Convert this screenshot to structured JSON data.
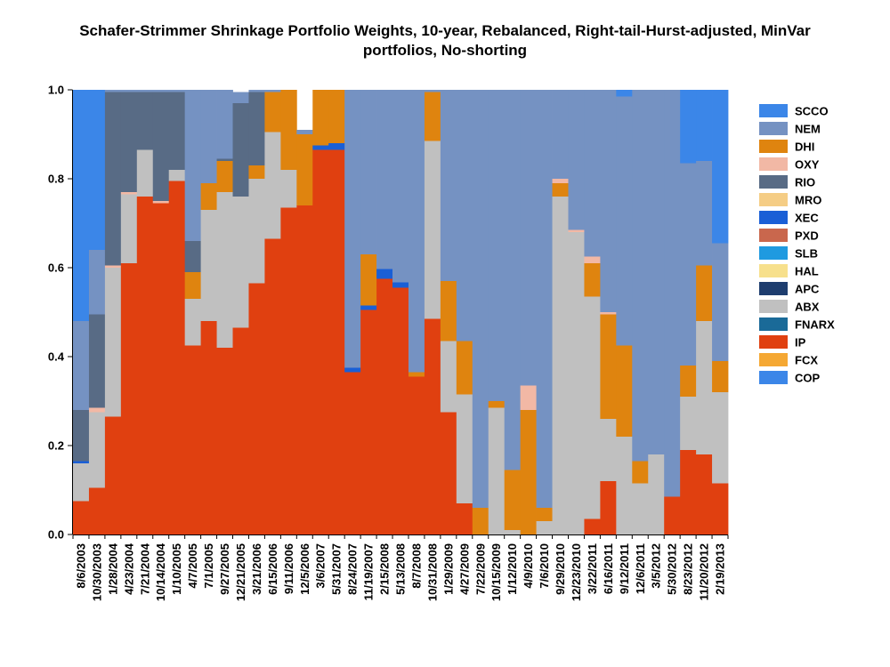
{
  "chart_data": {
    "type": "stacked-bar",
    "title_line1": "Schafer-Strimmer Shrinkage Portfolio Weights, 10-year, Rebalanced, Right-tail-Hurst-adjusted, MinVar",
    "title_line2": "portfolios, No-shorting",
    "ylim": [
      0,
      1
    ],
    "y_ticks": [
      "0.0",
      "0.2",
      "0.4",
      "0.6",
      "0.8",
      "1.0"
    ],
    "x_tick_labels": [
      "8/6/2003",
      "10/30/2003",
      "1/28/2004",
      "4/23/2004",
      "7/21/2004",
      "10/14/2004",
      "1/10/2005",
      "4/7/2005",
      "7/1/2005",
      "9/27/2005",
      "12/21/2005",
      "3/21/2006",
      "6/15/2006",
      "9/11/2006",
      "12/5/2006",
      "3/6/2007",
      "5/31/2007",
      "8/24/2007",
      "11/19/2007",
      "2/15/2008",
      "5/13/2008",
      "8/7/2008",
      "10/31/2008",
      "1/29/2009",
      "4/27/2009",
      "7/22/2009",
      "10/15/2009",
      "1/12/2010",
      "4/9/2010",
      "7/6/2010",
      "9/29/2010",
      "12/23/2010",
      "3/22/2011",
      "6/16/2011",
      "9/12/2011",
      "12/6/2011",
      "3/5/2012",
      "5/30/2012",
      "8/23/2012",
      "11/20/2012",
      "2/19/2013"
    ],
    "legend_order": [
      "SCCO",
      "NEM",
      "DHI",
      "OXY",
      "RIO",
      "MRO",
      "XEC",
      "PXD",
      "SLB",
      "HAL",
      "APC",
      "ABX",
      "FNARX",
      "IP",
      "FCX",
      "COP"
    ],
    "stack_order": [
      "IP",
      "ABX",
      "APC",
      "XEC",
      "FCX",
      "DHI",
      "OXY",
      "RIO",
      "NEM",
      "SCCO"
    ],
    "colors": {
      "SCCO": "#3b86e8",
      "NEM": "#7592c2",
      "DHI": "#df840f",
      "OXY": "#f2b8a5",
      "RIO": "#586b85",
      "MRO": "#f5cd85",
      "XEC": "#1a5fd6",
      "PXD": "#c9674d",
      "SLB": "#1f9ae0",
      "HAL": "#f7e08c",
      "APC": "#1e3d6e",
      "ABX": "#c0c0c0",
      "FNARX": "#1a6a98",
      "IP": "#e04010",
      "FCX": "#f5a833",
      "COP": "#3b86e8"
    },
    "series": [
      {
        "name": "IP",
        "values": [
          0.075,
          0.105,
          0.265,
          0.61,
          0.76,
          0.745,
          0.795,
          0.425,
          0.48,
          0.42,
          0.465,
          0.565,
          0.665,
          0.735,
          0.74,
          0.865,
          0.865,
          0.365,
          0.505,
          0.575,
          0.555,
          0.355,
          0.485,
          0.275,
          0.07,
          0,
          0,
          0,
          0,
          0,
          0,
          0,
          0.035,
          0.12,
          0,
          0,
          0,
          0.085,
          0.19,
          0.18,
          0.115
        ]
      },
      {
        "name": "ABX",
        "values": [
          0.085,
          0.17,
          0.335,
          0.155,
          0.105,
          0,
          0.025,
          0.105,
          0.25,
          0.35,
          0.295,
          0.235,
          0.24,
          0.085,
          0,
          0,
          0,
          0,
          0,
          0,
          0,
          0,
          0.4,
          0.16,
          0.245,
          0,
          0.285,
          0.01,
          0,
          0.03,
          0.76,
          0.68,
          0.5,
          0.14,
          0.22,
          0.115,
          0.18,
          0,
          0.12,
          0.3,
          0.205
        ]
      },
      {
        "name": "APC",
        "values": [
          0,
          0,
          0,
          0,
          0,
          0,
          0,
          0,
          0,
          0,
          0,
          0,
          0,
          0,
          0,
          0,
          0,
          0,
          0,
          0,
          0,
          0,
          0,
          0,
          0,
          0,
          0,
          0,
          0,
          0,
          0,
          0,
          0,
          0,
          0,
          0,
          0,
          0,
          0,
          0,
          0
        ]
      },
      {
        "name": "XEC",
        "values": [
          0.005,
          0,
          0,
          0,
          0,
          0,
          0,
          0,
          0,
          0,
          0,
          0,
          0,
          0,
          0,
          0.01,
          0.015,
          0.01,
          0.01,
          0.022,
          0.012,
          0,
          0,
          0,
          0,
          0,
          0,
          0,
          0,
          0,
          0,
          0,
          0,
          0,
          0,
          0,
          0,
          0,
          0,
          0,
          0
        ]
      },
      {
        "name": "FCX",
        "values": [
          0,
          0,
          0,
          0,
          0,
          0,
          0,
          0,
          0,
          0,
          0,
          0,
          0,
          0,
          0,
          0,
          0,
          0,
          0,
          0,
          0,
          0,
          0,
          0,
          0,
          0,
          0,
          0,
          0,
          0,
          0,
          0,
          0,
          0,
          0,
          0,
          0,
          0,
          0,
          0,
          0
        ]
      },
      {
        "name": "DHI",
        "values": [
          0,
          0,
          0,
          0,
          0,
          0,
          0,
          0.06,
          0.06,
          0.07,
          0,
          0.03,
          0.09,
          0.18,
          0.16,
          0.125,
          0.12,
          0,
          0.115,
          0,
          0,
          0.01,
          0.11,
          0.135,
          0.12,
          0.06,
          0.015,
          0.135,
          0.28,
          0.03,
          0.03,
          0,
          0.075,
          0.235,
          0.205,
          0.05,
          0,
          0,
          0.07,
          0.125,
          0.07
        ]
      },
      {
        "name": "OXY",
        "values": [
          0,
          0.01,
          0.005,
          0.005,
          0,
          0.005,
          0,
          0,
          0,
          0,
          0,
          0,
          0,
          0,
          0,
          0,
          0,
          0,
          0,
          0,
          0,
          0,
          0,
          0,
          0,
          0,
          0,
          0,
          0.055,
          0,
          0.01,
          0.005,
          0.015,
          0.005,
          0,
          0,
          0,
          0,
          0,
          0,
          0
        ]
      },
      {
        "name": "RIO",
        "values": [
          0.115,
          0.21,
          0.39,
          0.225,
          0.13,
          0.245,
          0.175,
          0.07,
          0,
          0.005,
          0.21,
          0.165,
          0,
          0,
          0,
          0,
          0,
          0,
          0,
          0,
          0,
          0,
          0,
          0,
          0,
          0,
          0,
          0,
          0,
          0,
          0,
          0,
          0,
          0,
          0,
          0,
          0,
          0,
          0,
          0,
          0
        ]
      },
      {
        "name": "NEM",
        "values": [
          0.2,
          0.145,
          0.005,
          0.005,
          0.005,
          0.005,
          0.005,
          0.34,
          0.21,
          0.155,
          0.025,
          0.005,
          0.005,
          0.0,
          0.01,
          0,
          0,
          0.625,
          0.37,
          0.403,
          0.433,
          0.635,
          0.005,
          0.43,
          0.565,
          0.94,
          0.7,
          0.855,
          0.665,
          0.94,
          0.2,
          0.315,
          0.375,
          0.5,
          0.56,
          0.835,
          0.82,
          0.915,
          0.455,
          0.235,
          0.265
        ]
      },
      {
        "name": "SCCO",
        "values": [
          0.52,
          0.36,
          0,
          0,
          0,
          0,
          0,
          0,
          0,
          0,
          0,
          0,
          0,
          0,
          0,
          0,
          0,
          0,
          0,
          0,
          0,
          0,
          0,
          0,
          0,
          0,
          0,
          0,
          0,
          0,
          0,
          0,
          0,
          0,
          0.015,
          0,
          0,
          0,
          0.165,
          0.16,
          0.345
        ]
      }
    ]
  }
}
